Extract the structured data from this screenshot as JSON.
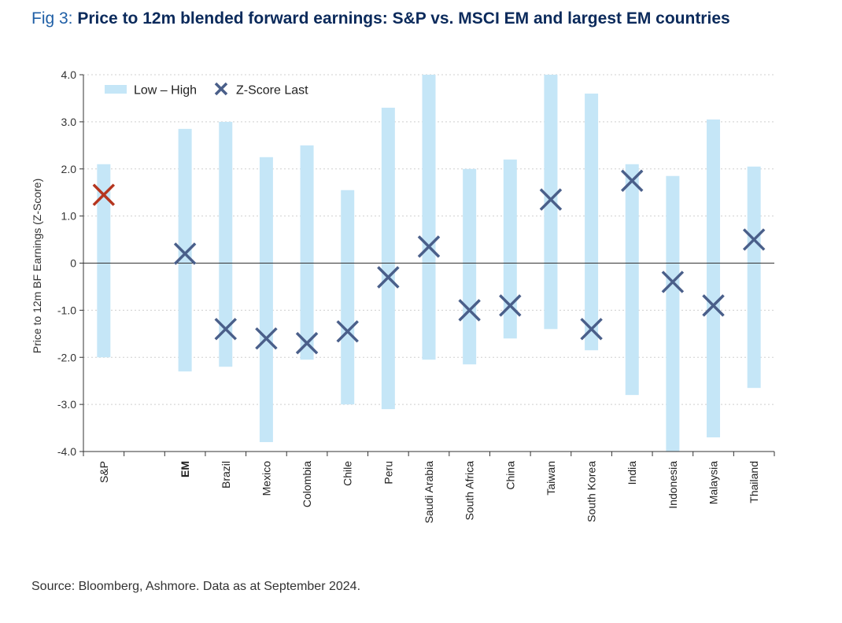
{
  "title": {
    "prefix": "Fig 3: ",
    "main": "Price to 12m blended forward earnings: S&P vs. MSCI EM and largest EM countries"
  },
  "source": "Source: Bloomberg, Ashmore. Data as at September 2024.",
  "colors": {
    "range_bar": "#c5e6f7",
    "marker": "#4a5f8a",
    "marker_highlight": "#b5361f",
    "axis": "#333333",
    "grid": "#cfcfcf",
    "title": "#0b2a5b"
  },
  "chart_data": {
    "type": "range-scatter",
    "ylabel": "Price to 12m BF Earnings (Z-Score)",
    "ylim": [
      -4.0,
      4.0
    ],
    "yticks": [
      -4.0,
      -3.0,
      -2.0,
      -1.0,
      0,
      1.0,
      2.0,
      3.0,
      4.0
    ],
    "ytick_labels": [
      "-4.0",
      "-3.0",
      "-2.0",
      "-1.0",
      "0",
      "1.0",
      "2.0",
      "3.0",
      "4.0"
    ],
    "grid": true,
    "legend": {
      "position": "top-left",
      "entries": [
        "Low – High",
        "Z-Score Last"
      ]
    },
    "categories": [
      "S&P",
      "",
      "EM",
      "Brazil",
      "Mexico",
      "Colombia",
      "Chile",
      "Peru",
      "Saudi Arabia",
      "South Africa",
      "China",
      "Taiwan",
      "South Korea",
      "India",
      "Indonesia",
      "Malaysia",
      "Thailand"
    ],
    "bold_categories": [
      "EM"
    ],
    "highlight_categories": [
      "S&P"
    ],
    "low": [
      -2.0,
      null,
      -2.3,
      -2.2,
      -3.8,
      -2.05,
      -3.0,
      -3.1,
      -2.05,
      -2.15,
      -1.6,
      -1.4,
      -1.85,
      -2.8,
      -4.0,
      -3.7,
      -2.65
    ],
    "high": [
      2.1,
      null,
      2.85,
      3.0,
      2.25,
      2.5,
      1.55,
      3.3,
      4.0,
      2.0,
      2.2,
      4.0,
      3.6,
      2.1,
      1.85,
      3.05,
      2.05
    ],
    "last": [
      1.45,
      null,
      0.2,
      -1.4,
      -1.6,
      -1.7,
      -1.45,
      -0.3,
      0.35,
      -1.0,
      -0.9,
      1.35,
      -1.4,
      1.75,
      -0.4,
      -0.9,
      0.5
    ]
  }
}
